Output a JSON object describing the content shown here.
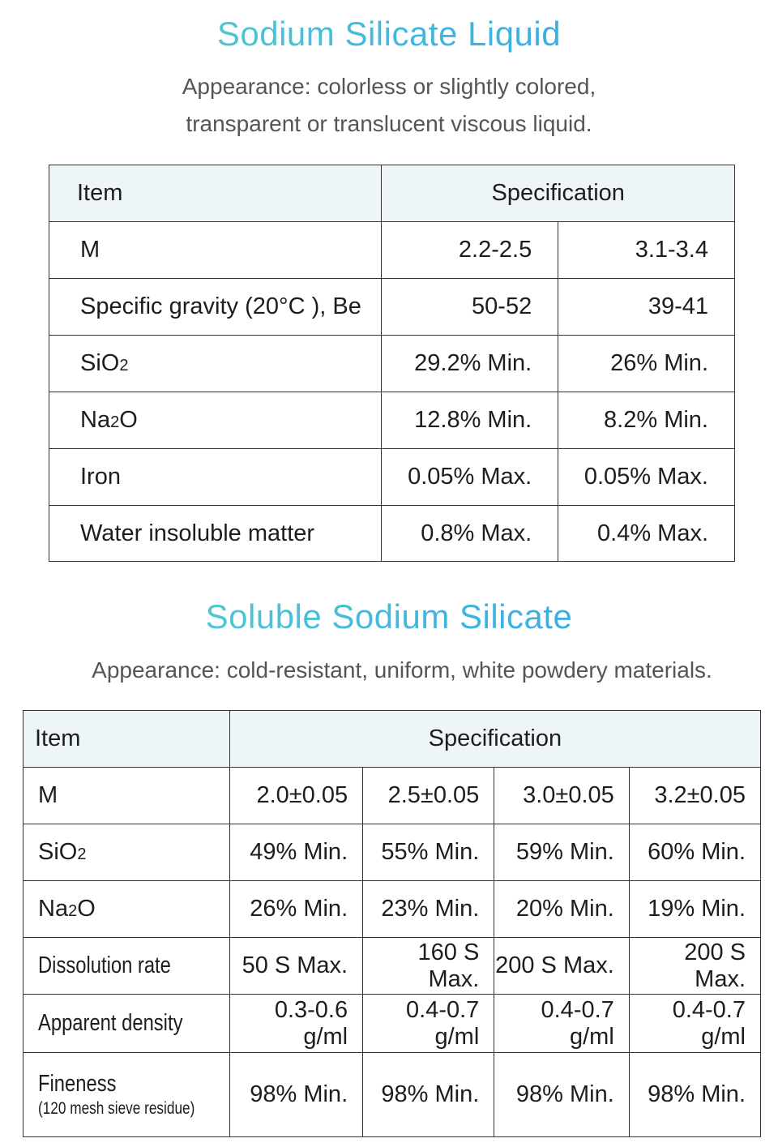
{
  "section1": {
    "title": "Sodium Silicate Liquid",
    "appearance_line1": "Appearance: colorless or slightly colored,",
    "appearance_line2": "transparent or translucent viscous liquid.",
    "header": {
      "item": "Item",
      "specification": "Specification"
    },
    "rows": [
      {
        "item": "M",
        "v1": "2.2-2.5",
        "v2": "3.1-3.4"
      },
      {
        "item": "Specific gravity (20°C ), Be",
        "v1": "50-52",
        "v2": "39-41"
      },
      {
        "item_main": "SiO",
        "item_sub": "2",
        "item_tail": "",
        "v1": "29.2% Min.",
        "v2": "26% Min."
      },
      {
        "item_main": "Na",
        "item_sub": "2",
        "item_tail": "O",
        "v1": "12.8% Min.",
        "v2": "8.2% Min."
      },
      {
        "item": "Iron",
        "v1": "0.05% Max.",
        "v2": "0.05% Max."
      },
      {
        "item": "Water insoluble matter",
        "v1": "0.8% Max.",
        "v2": "0.4% Max."
      }
    ]
  },
  "section2": {
    "title": "Soluble Sodium Silicate",
    "appearance": "Appearance: cold-resistant, uniform, white powdery materials.",
    "header": {
      "item": "Item",
      "specification": "Specification"
    },
    "rows": [
      {
        "item": "M",
        "v": [
          "2.0±0.05",
          "2.5±0.05",
          "3.0±0.05",
          "3.2±0.05"
        ]
      },
      {
        "item_main": "SiO",
        "item_sub": "2",
        "item_tail": "",
        "v": [
          "49% Min.",
          "55% Min.",
          "59% Min.",
          "60% Min."
        ]
      },
      {
        "item_main": "Na",
        "item_sub": "2",
        "item_tail": "O",
        "v": [
          "26% Min.",
          "23% Min.",
          "20% Min.",
          "19% Min."
        ]
      },
      {
        "item": "Dissolution rate",
        "v": [
          "50 S Max.",
          "160 S Max.",
          "200 S Max.",
          "200 S Max."
        ]
      },
      {
        "item": "Apparent density",
        "v": [
          "0.3-0.6 g/ml",
          "0.4-0.7 g/ml",
          "0.4-0.7 g/ml",
          "0.4-0.7 g/ml"
        ]
      },
      {
        "item": "Fineness",
        "item_note": "(120 mesh sieve residue)",
        "v": [
          "98% Min.",
          "98% Min.",
          "98% Min.",
          "98% Min."
        ]
      }
    ]
  }
}
